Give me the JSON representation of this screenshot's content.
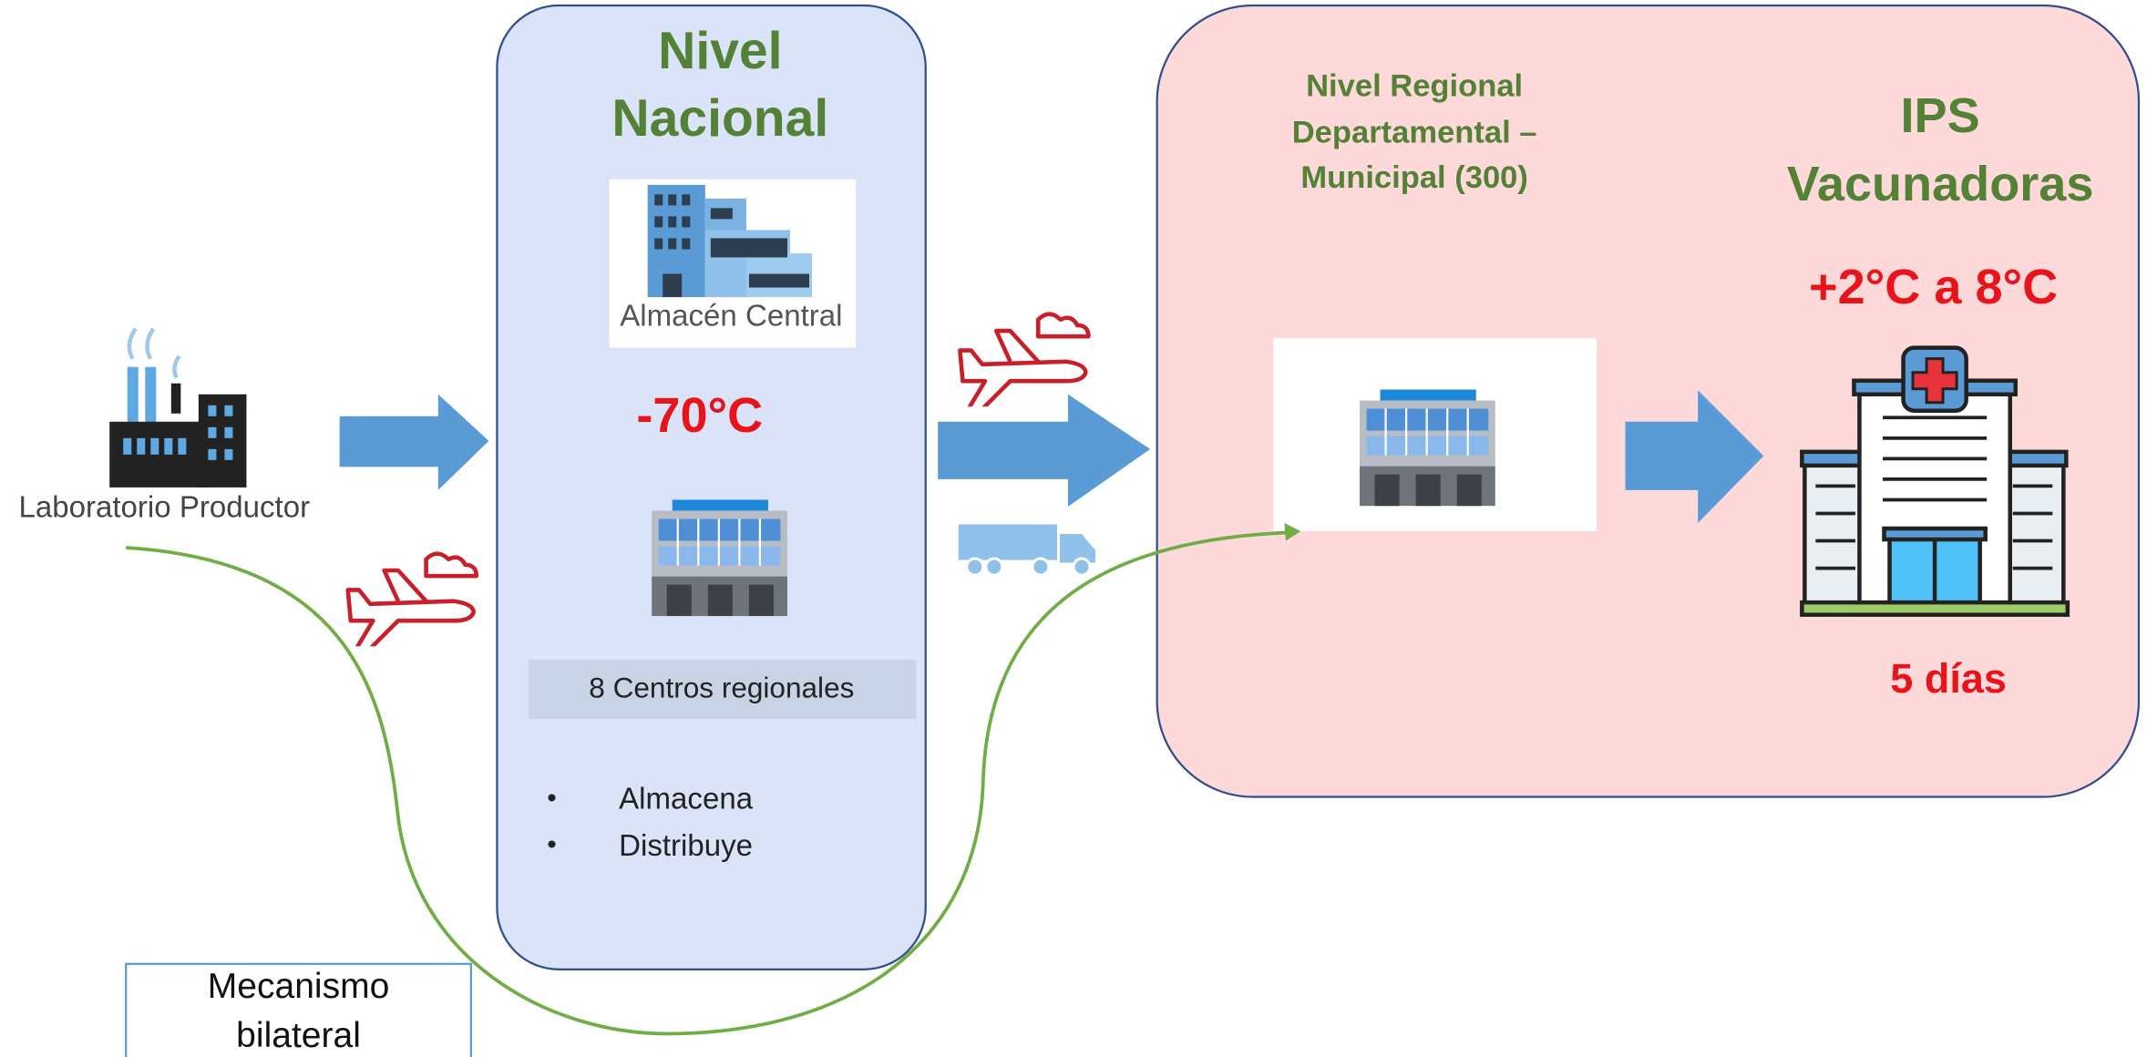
{
  "producer": {
    "label": "Laboratorio Productor"
  },
  "national": {
    "title": [
      "Nivel",
      "Nacional"
    ],
    "warehouse_label": "Almacén Central",
    "temperature": "-70°C",
    "centers": "8 Centros regionales",
    "bullets": [
      "Almacena",
      "Distribuye"
    ]
  },
  "regional": {
    "title": [
      "Nivel Regional",
      "Departamental –",
      "Municipal (300)"
    ]
  },
  "ips": {
    "title": [
      "IPS",
      "Vacunadoras"
    ],
    "temperature": "+2°C a 8°C",
    "duration": "5 días"
  },
  "bilateral": {
    "label": [
      "Mecanismo",
      "bilateral"
    ]
  }
}
